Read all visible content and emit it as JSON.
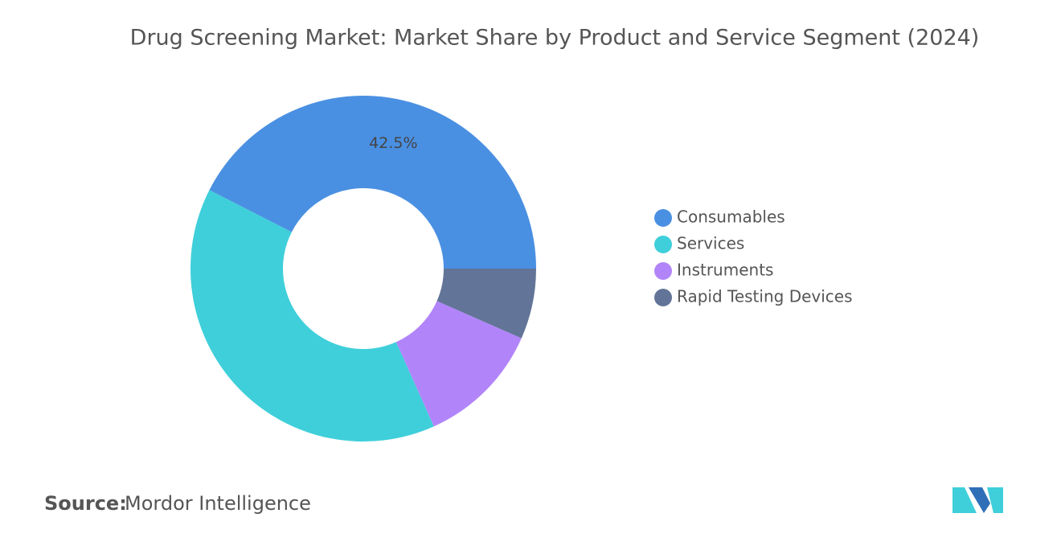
{
  "chart_data": {
    "type": "donut",
    "title": "Drug Screening Market: Market Share by Product and Service Segment (2024)",
    "categories": [
      "Consumables",
      "Services",
      "Instruments",
      "Rapid Testing Devices"
    ],
    "values": [
      42.5,
      39.2,
      11.7,
      6.6
    ],
    "value_labels": [
      "42.5%",
      null,
      null,
      null
    ],
    "colors": [
      "#4a90e2",
      "#3fcfda",
      "#b185f9",
      "#627497"
    ],
    "legend": "right",
    "source_label": "Source:",
    "source": "Mordor Intelligence"
  }
}
